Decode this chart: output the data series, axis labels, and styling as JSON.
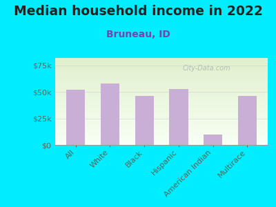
{
  "title": "Median household income in 2022",
  "subtitle": "Bruneau, ID",
  "categories": [
    "All",
    "White",
    "Black",
    "Hispanic",
    "American Indian",
    "Multirace"
  ],
  "values": [
    52000,
    58000,
    46000,
    53000,
    10000,
    46000
  ],
  "bar_color": "#c9aed6",
  "background_outer": "#00eeff",
  "title_color": "#222222",
  "subtitle_color": "#7744aa",
  "tick_label_color": "#556655",
  "watermark": "City-Data.com",
  "ylim": [
    0,
    82000
  ],
  "yticks": [
    0,
    25000,
    50000,
    75000
  ],
  "ytick_labels": [
    "$0",
    "$25k",
    "$50k",
    "$75k"
  ],
  "title_fontsize": 13.5,
  "subtitle_fontsize": 10,
  "axis_label_fontsize": 8
}
